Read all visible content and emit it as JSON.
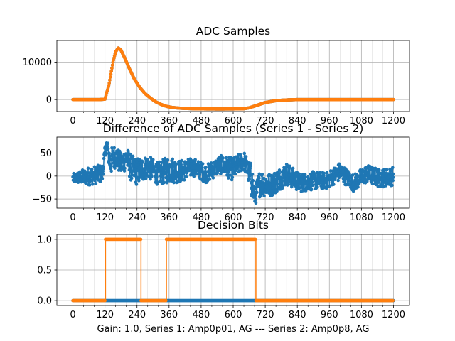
{
  "figure": {
    "xlabel": "Gain: 1.0, Series 1: Amp0p01, AG --- Series 2: Amp0p8, AG",
    "colors": {
      "series1": "#1f77b4",
      "series2": "#ff7f0e",
      "grid": "#b0b0b0",
      "axis": "#000000"
    }
  },
  "chart_data": [
    {
      "type": "line",
      "title": "ADC Samples",
      "xlabel": "",
      "ylabel": "",
      "xlim": [
        -60,
        1260
      ],
      "ylim": [
        -3200,
        15800
      ],
      "xticks": [
        0,
        120,
        240,
        360,
        480,
        600,
        720,
        840,
        960,
        1080,
        1200
      ],
      "xtick_labels": [
        "0",
        "120",
        "240",
        "360",
        "480",
        "600",
        "720",
        "840",
        "960",
        "1080",
        "1200"
      ],
      "yticks": [
        0,
        10000
      ],
      "ytick_labels": [
        "0",
        "10000"
      ],
      "grid": true,
      "series": [
        {
          "name": "Series 1",
          "color": "#1f77b4",
          "marker": "circle",
          "x": [
            0,
            100,
            120,
            135,
            150,
            160,
            170,
            180,
            195,
            210,
            230,
            250,
            270,
            290,
            310,
            330,
            350,
            370,
            400,
            450,
            500,
            550,
            600,
            640,
            660,
            690,
            720,
            760,
            800,
            840,
            900,
            1000,
            1100,
            1200
          ],
          "y": [
            0,
            0,
            100,
            4000,
            10000,
            12800,
            13800,
            13200,
            11000,
            8500,
            5500,
            3300,
            1600,
            400,
            -600,
            -1300,
            -1800,
            -2100,
            -2300,
            -2450,
            -2500,
            -2520,
            -2500,
            -2450,
            -2200,
            -1500,
            -800,
            -300,
            -100,
            0,
            0,
            0,
            0,
            0
          ]
        },
        {
          "name": "Series 2",
          "color": "#ff7f0e",
          "marker": "circle",
          "x": [
            0,
            100,
            120,
            135,
            150,
            160,
            170,
            180,
            195,
            210,
            230,
            250,
            270,
            290,
            310,
            330,
            350,
            370,
            400,
            450,
            500,
            550,
            600,
            640,
            660,
            690,
            720,
            760,
            800,
            840,
            900,
            1000,
            1100,
            1200
          ],
          "y": [
            0,
            0,
            100,
            4000,
            10000,
            12800,
            13800,
            13200,
            11000,
            8500,
            5500,
            3300,
            1600,
            400,
            -600,
            -1300,
            -1800,
            -2100,
            -2300,
            -2450,
            -2500,
            -2520,
            -2500,
            -2450,
            -2200,
            -1500,
            -800,
            -300,
            -100,
            0,
            0,
            0,
            0,
            0
          ]
        }
      ]
    },
    {
      "type": "line",
      "title": "Difference of ADC Samples (Series 1 - Series 2)",
      "xlabel": "",
      "ylabel": "",
      "xlim": [
        -60,
        1260
      ],
      "ylim": [
        -70,
        85
      ],
      "xticks": [
        0,
        120,
        240,
        360,
        480,
        600,
        720,
        840,
        960,
        1080,
        1200
      ],
      "xtick_labels": [
        "0",
        "120",
        "240",
        "360",
        "480",
        "600",
        "720",
        "840",
        "960",
        "1080",
        "1200"
      ],
      "yticks": [
        -50,
        0,
        50
      ],
      "ytick_labels": [
        "−50",
        "0",
        "50"
      ],
      "grid": true,
      "series": [
        {
          "name": "Series 1 - Series 2",
          "color": "#1f77b4",
          "marker": "circle",
          "x": [
            0,
            60,
            110,
            125,
            140,
            160,
            180,
            200,
            220,
            240,
            280,
            320,
            360,
            400,
            450,
            500,
            550,
            600,
            640,
            660,
            670,
            680,
            700,
            740,
            800,
            850,
            900,
            950,
            1000,
            1050,
            1100,
            1150,
            1200
          ],
          "y": [
            -5,
            0,
            5,
            70,
            30,
            45,
            25,
            40,
            15,
            10,
            20,
            5,
            15,
            10,
            20,
            5,
            25,
            15,
            35,
            5,
            -10,
            -45,
            -15,
            -20,
            5,
            -15,
            -10,
            -10,
            10,
            -15,
            5,
            -5,
            0
          ],
          "noise_envelope": [
            10,
            20,
            20,
            15,
            30,
            25,
            25,
            25,
            30,
            30,
            25,
            25,
            30,
            25,
            20,
            20,
            20,
            25,
            20,
            25,
            40,
            20,
            30,
            25,
            25,
            20,
            20,
            18,
            20,
            18,
            20,
            20,
            20
          ]
        }
      ]
    },
    {
      "type": "line",
      "title": "Decision Bits",
      "xlabel": "Gain: 1.0, Series 1: Amp0p01, AG --- Series 2: Amp0p8, AG",
      "ylabel": "",
      "xlim": [
        -60,
        1260
      ],
      "ylim": [
        -0.08,
        1.08
      ],
      "xticks": [
        0,
        120,
        240,
        360,
        480,
        600,
        720,
        840,
        960,
        1080,
        1200
      ],
      "xtick_labels": [
        "0",
        "120",
        "240",
        "360",
        "480",
        "600",
        "720",
        "840",
        "960",
        "1080",
        "1200"
      ],
      "yticks": [
        0.0,
        0.5,
        1.0
      ],
      "ytick_labels": [
        "0.0",
        "0.5",
        "1.0"
      ],
      "grid": true,
      "series": [
        {
          "name": "Series 1",
          "color": "#1f77b4",
          "marker": "circle",
          "segments": [
            {
              "x_start": 0,
              "x_end": 1200,
              "y": 0
            }
          ]
        },
        {
          "name": "Series 2",
          "color": "#ff7f0e",
          "marker": "circle",
          "segments": [
            {
              "x_start": 0,
              "x_end": 122,
              "y": 0
            },
            {
              "x_start": 122,
              "x_end": 255,
              "y": 1
            },
            {
              "x_start": 255,
              "x_end": 350,
              "y": 0
            },
            {
              "x_start": 350,
              "x_end": 685,
              "y": 1
            },
            {
              "x_start": 685,
              "x_end": 1200,
              "y": 0
            }
          ]
        }
      ]
    }
  ]
}
